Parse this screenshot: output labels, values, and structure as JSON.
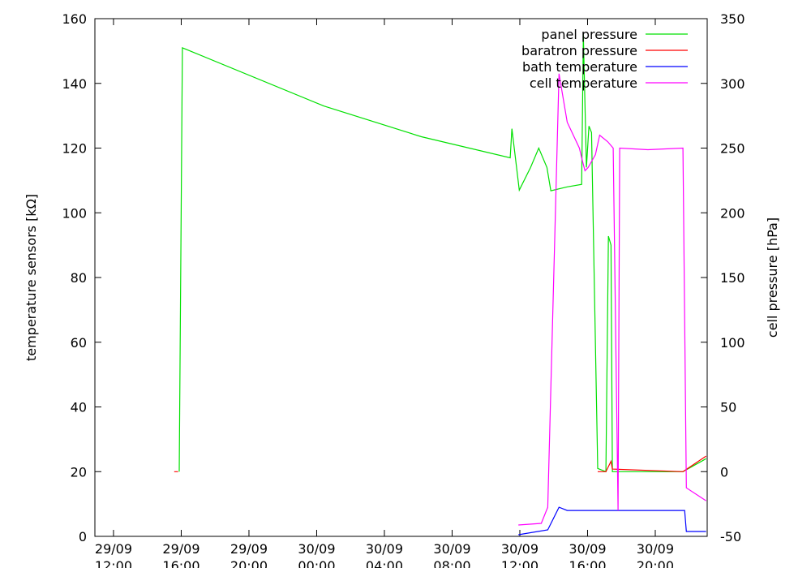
{
  "chart_data": {
    "type": "line",
    "ylabel": "temperature sensors [kΩ]",
    "y2label": "cell pressure [hPa]",
    "xlim": [
      "29/09 10:54",
      "30/09 23:04"
    ],
    "xticks": [
      "29/09 12:00",
      "29/09 16:00",
      "29/09 20:00",
      "30/09 00:00",
      "30/09 04:00",
      "30/09 08:00",
      "30/09 12:00",
      "30/09 16:00",
      "30/09 20:00"
    ],
    "ylim": [
      0,
      160
    ],
    "yticks": [
      0,
      20,
      40,
      60,
      80,
      100,
      120,
      140,
      160
    ],
    "y2lim": [
      -50,
      350
    ],
    "y2ticks": [
      -50,
      0,
      50,
      100,
      150,
      200,
      250,
      300,
      350
    ],
    "legend": "upper right",
    "series": [
      {
        "name": "panel pressure",
        "color": "#00e000",
        "axis": "y2",
        "x": [
          "29/09 15:53",
          "29/09 16:04",
          "30/09 00:26",
          "30/09 06:11",
          "30/09 11:26",
          "30/09 11:32",
          "30/09 11:58",
          "30/09 12:38",
          "30/09 13:07",
          "30/09 13:36",
          "30/09 13:50",
          "30/09 14:48",
          "30/09 15:39",
          "30/09 15:45",
          "30/09 15:56",
          "30/09 16:05",
          "30/09 16:14",
          "30/09 16:36",
          "30/09 17:05",
          "30/09 17:14",
          "30/09 17:23",
          "30/09 17:28",
          "30/09 21:38",
          "30/09 23:00"
        ],
        "values": [
          0,
          327.5,
          282.5,
          258.75,
          242.5,
          265,
          217.5,
          235,
          250,
          235,
          217,
          220,
          222,
          337.5,
          235,
          267,
          262,
          2.5,
          0,
          182,
          175,
          0,
          0,
          10
        ]
      },
      {
        "name": "baratron pressure",
        "color": "#ff0000",
        "axis": "y2",
        "x": [
          "29/09 15:35",
          "29/09 15:49",
          "30/09 12:00",
          "30/09 16:36",
          "30/09 17:05",
          "30/09 17:23",
          "30/09 17:28",
          "30/09 21:38",
          "30/09 23:00"
        ],
        "values": [
          0,
          0,
          null,
          0,
          0,
          8,
          2,
          0,
          12
        ]
      },
      {
        "name": "bath temperature",
        "color": "#0000ff",
        "axis": "y",
        "x": [
          "30/09 11:55",
          "30/09 13:39",
          "30/09 14:19",
          "30/09 14:48",
          "30/09 17:40",
          "30/09 21:44",
          "30/09 21:50",
          "30/09 23:00"
        ],
        "values": [
          0.5,
          2,
          9,
          8,
          8,
          8,
          1.5,
          1.5
        ]
      },
      {
        "name": "cell temperature",
        "color": "#ff00ff",
        "axis": "y",
        "x": [
          "30/09 11:55",
          "30/09 13:16",
          "30/09 13:39",
          "30/09 14:19",
          "30/09 14:48",
          "30/09 15:31",
          "30/09 15:39",
          "30/09 15:51",
          "30/09 16:02",
          "30/09 16:28",
          "30/09 16:43",
          "30/09 17:11",
          "30/09 17:31",
          "30/09 17:48",
          "30/09 17:54",
          "30/09 19:34",
          "30/09 21:38",
          "30/09 21:50",
          "30/09 23:00"
        ],
        "values": [
          3.5,
          4,
          9,
          143,
          128,
          120,
          117,
          113,
          114,
          118,
          124,
          122,
          120,
          8,
          120,
          119.5,
          120,
          15,
          11
        ]
      }
    ]
  }
}
